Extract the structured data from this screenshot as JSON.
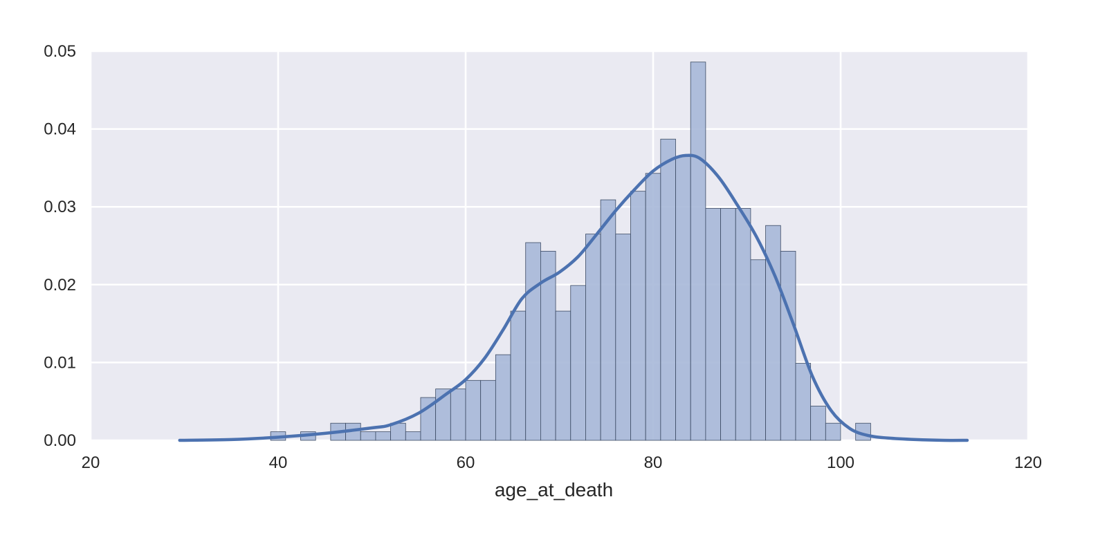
{
  "chart_data": {
    "type": "bar",
    "subtype": "histogram with kde",
    "title": "",
    "xlabel": "age_at_death",
    "ylabel": "",
    "xlim": [
      20,
      120
    ],
    "ylim": [
      0,
      0.05
    ],
    "xticks": [
      20,
      40,
      60,
      80,
      100,
      120
    ],
    "xtick_labels": [
      "20",
      "40",
      "60",
      "80",
      "100",
      "120"
    ],
    "yticks": [
      0.0,
      0.01,
      0.02,
      0.03,
      0.04,
      0.05
    ],
    "ytick_labels": [
      "0.00",
      "0.01",
      "0.02",
      "0.03",
      "0.04",
      "0.05"
    ],
    "grid": true,
    "colors": {
      "background": "#eaeaf2",
      "grid": "#ffffff",
      "bar_fill": "#a7b8d8",
      "bar_edge": "#3b4a63",
      "kde_line": "#4c72b0",
      "text": "#262626"
    },
    "bin_width": 1.6,
    "bins": [
      {
        "x0": 39.2,
        "height": 0.0011
      },
      {
        "x0": 42.4,
        "height": 0.0011
      },
      {
        "x0": 45.6,
        "height": 0.0022
      },
      {
        "x0": 47.2,
        "height": 0.0022
      },
      {
        "x0": 48.8,
        "height": 0.0011
      },
      {
        "x0": 50.4,
        "height": 0.0011
      },
      {
        "x0": 52.0,
        "height": 0.0022
      },
      {
        "x0": 53.6,
        "height": 0.0011
      },
      {
        "x0": 55.2,
        "height": 0.0055
      },
      {
        "x0": 56.8,
        "height": 0.0066
      },
      {
        "x0": 58.4,
        "height": 0.0066
      },
      {
        "x0": 60.0,
        "height": 0.0077
      },
      {
        "x0": 61.6,
        "height": 0.0077
      },
      {
        "x0": 63.2,
        "height": 0.011
      },
      {
        "x0": 64.8,
        "height": 0.0166
      },
      {
        "x0": 66.4,
        "height": 0.0254
      },
      {
        "x0": 68.0,
        "height": 0.0243
      },
      {
        "x0": 69.6,
        "height": 0.0166
      },
      {
        "x0": 71.2,
        "height": 0.0199
      },
      {
        "x0": 72.8,
        "height": 0.0265
      },
      {
        "x0": 74.4,
        "height": 0.0309
      },
      {
        "x0": 76.0,
        "height": 0.0265
      },
      {
        "x0": 77.6,
        "height": 0.032
      },
      {
        "x0": 79.2,
        "height": 0.0343
      },
      {
        "x0": 80.8,
        "height": 0.0387
      },
      {
        "x0": 82.4,
        "height": 0.0365
      },
      {
        "x0": 84.0,
        "height": 0.0486
      },
      {
        "x0": 85.6,
        "height": 0.0298
      },
      {
        "x0": 87.2,
        "height": 0.0298
      },
      {
        "x0": 88.8,
        "height": 0.0298
      },
      {
        "x0": 90.4,
        "height": 0.0232
      },
      {
        "x0": 92.0,
        "height": 0.0276
      },
      {
        "x0": 93.6,
        "height": 0.0243
      },
      {
        "x0": 95.2,
        "height": 0.0099
      },
      {
        "x0": 96.8,
        "height": 0.0044
      },
      {
        "x0": 98.4,
        "height": 0.0022
      },
      {
        "x0": 101.6,
        "height": 0.0022
      }
    ],
    "kde": {
      "x": [
        29.5,
        35,
        40,
        45,
        50,
        52,
        55,
        58,
        60,
        62,
        64,
        66,
        68,
        70,
        72,
        74,
        76,
        78,
        80,
        82,
        83.5,
        85,
        87,
        89,
        91,
        93,
        95,
        97,
        99,
        101,
        103,
        105,
        108,
        111,
        113.5
      ],
      "y": [
        0.0,
        0.0001,
        0.0004,
        0.0009,
        0.0016,
        0.002,
        0.0035,
        0.006,
        0.0078,
        0.0105,
        0.0142,
        0.0182,
        0.0202,
        0.0216,
        0.0236,
        0.0265,
        0.0295,
        0.0322,
        0.0346,
        0.0361,
        0.0366,
        0.0362,
        0.0338,
        0.0302,
        0.0262,
        0.0211,
        0.0148,
        0.0082,
        0.0038,
        0.0015,
        0.0006,
        0.0003,
        0.0001,
        0.0,
        0.0
      ]
    }
  }
}
